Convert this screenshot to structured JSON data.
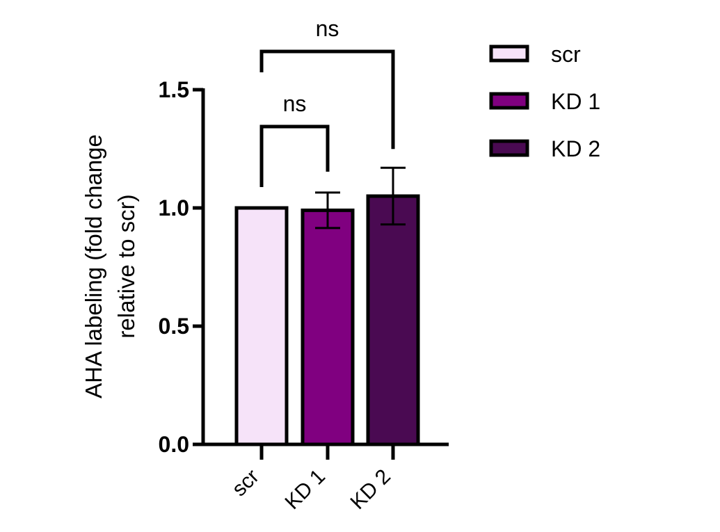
{
  "chart_data": {
    "type": "bar",
    "categories": [
      "scr",
      "KD 1",
      "KD 2"
    ],
    "values": [
      1.0,
      0.99,
      1.05
    ],
    "errors": [
      0.0,
      0.075,
      0.12
    ],
    "colors": [
      "#f6e3f9",
      "#800080",
      "#4a0a52"
    ],
    "edge_color": "#000000",
    "ylabel_lines": [
      "AHA labeling (fold change",
      "relative to scr)"
    ],
    "xlabel": "",
    "ylim": [
      0,
      1.5
    ],
    "yticks": [
      0,
      0.5,
      1.0,
      1.5
    ],
    "ytick_labels": [
      "0.0",
      "0.5",
      "1.0",
      "1.5"
    ],
    "grid": false,
    "legend_position": "top-right",
    "legend": [
      {
        "label": "scr",
        "color": "#f6e3f9"
      },
      {
        "label": "KD 1",
        "color": "#800080"
      },
      {
        "label": "KD 2",
        "color": "#4a0a52"
      }
    ],
    "comparisons": [
      {
        "from": "scr",
        "to": "KD 1",
        "label": "ns"
      },
      {
        "from": "scr",
        "to": "KD 2",
        "label": "ns"
      }
    ]
  }
}
